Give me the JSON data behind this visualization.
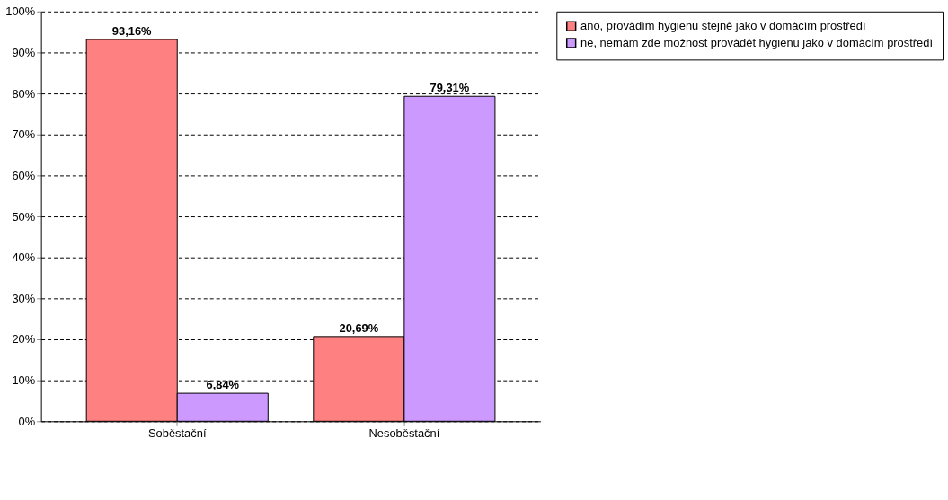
{
  "chart_data": {
    "type": "bar",
    "categories": [
      "Soběstační",
      "Nesoběstační"
    ],
    "series": [
      {
        "name": "ano, provádím hygienu stejně jako v domácím prostředí",
        "color": "#ff8080",
        "values": [
          93.16,
          20.69
        ],
        "value_labels": [
          "93,16%",
          "20,69%"
        ]
      },
      {
        "name": "ne, nemám zde možnost provádět hygienu jako v domácím prostředí",
        "color": "#cc99ff",
        "values": [
          6.84,
          79.31
        ],
        "value_labels": [
          "6,84%",
          "79,31%"
        ]
      }
    ],
    "ylim": [
      0,
      100
    ],
    "yticks": [
      {
        "value": 0,
        "label": "0%"
      },
      {
        "value": 10,
        "label": "10%"
      },
      {
        "value": 20,
        "label": "20%"
      },
      {
        "value": 30,
        "label": "30%"
      },
      {
        "value": 40,
        "label": "40%"
      },
      {
        "value": 50,
        "label": "50%"
      },
      {
        "value": 60,
        "label": "60%"
      },
      {
        "value": 70,
        "label": "70%"
      },
      {
        "value": 80,
        "label": "80%"
      },
      {
        "value": 90,
        "label": "90%"
      },
      {
        "value": 100,
        "label": "100%"
      }
    ],
    "grid": "y",
    "legend": "right"
  }
}
